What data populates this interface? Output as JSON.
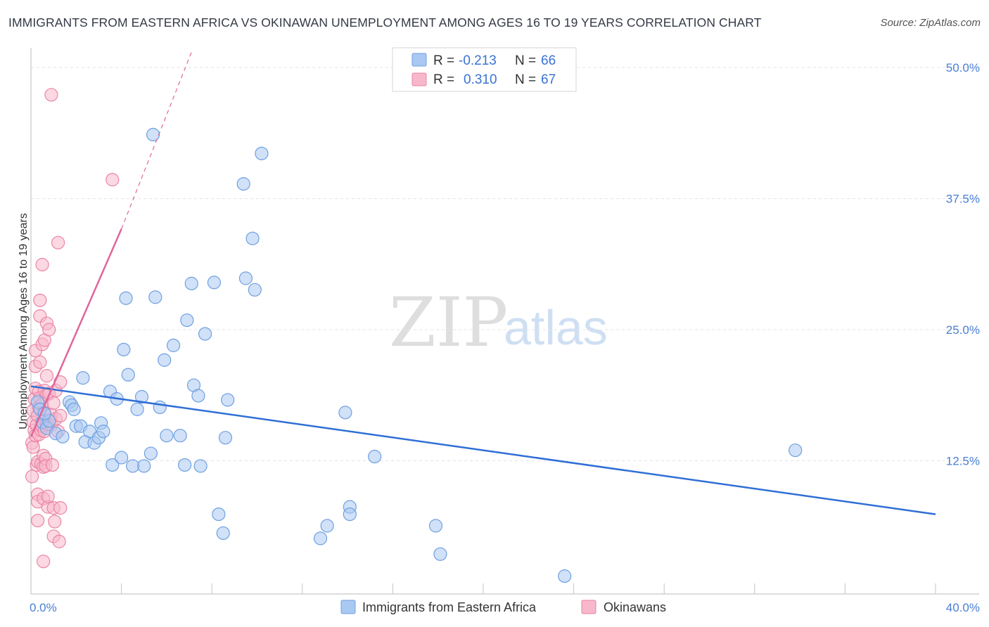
{
  "title": "IMMIGRANTS FROM EASTERN AFRICA VS OKINAWAN UNEMPLOYMENT AMONG AGES 16 TO 19 YEARS CORRELATION CHART",
  "source": "Source: ZipAtlas.com",
  "watermark": {
    "zip": "ZIP",
    "atlas": "atlas"
  },
  "colors": {
    "blue": "#a9c8f2",
    "blue_stroke": "#6fa0e0",
    "blue_line": "#2f6fd6",
    "pink": "#f7b8cb",
    "pink_stroke": "#ea85a6",
    "pink_line": "#e0669a",
    "tick": "#4a7fd4",
    "grid": "#e3e3e3"
  },
  "legend": {
    "r_label": "R =",
    "n_label": "N =",
    "rows": [
      {
        "r": "-0.213",
        "n": "66",
        "color": "blue"
      },
      {
        "r": "0.310",
        "n": "67",
        "color": "pink"
      }
    ]
  },
  "bottom_legend": [
    {
      "label": "Immigrants from Eastern Africa",
      "color": "blue"
    },
    {
      "label": "Okinawans",
      "color": "pink"
    }
  ],
  "chart_data": {
    "type": "scatter",
    "title": "IMMIGRANTS FROM EASTERN AFRICA VS OKINAWAN UNEMPLOYMENT AMONG AGES 16 TO 19 YEARS CORRELATION CHART",
    "xlabel": "",
    "ylabel": "Unemployment Among Ages 16 to 19 years",
    "xlim": [
      0,
      40
    ],
    "ylim": [
      0,
      50
    ],
    "x_tick_labels": [
      "0.0%",
      "40.0%"
    ],
    "y_ticks": [
      12.5,
      25.0,
      37.5,
      50.0
    ],
    "y_tick_labels": [
      "12.5%",
      "25.0%",
      "37.5%",
      "50.0%"
    ],
    "series": [
      {
        "name": "Immigrants from Eastern Africa",
        "color": "blue",
        "trend": {
          "x0": 0,
          "y0": 19.6,
          "x1": 40,
          "y1": 7.4,
          "dashed": false
        },
        "points": [
          [
            0.3,
            18.1
          ],
          [
            0.4,
            17.4
          ],
          [
            0.5,
            16.2
          ],
          [
            0.7,
            15.6
          ],
          [
            0.8,
            16.3
          ],
          [
            1.1,
            15.1
          ],
          [
            1.4,
            14.8
          ],
          [
            1.7,
            18.1
          ],
          [
            1.8,
            17.8
          ],
          [
            1.9,
            17.4
          ],
          [
            2.0,
            15.8
          ],
          [
            2.2,
            15.8
          ],
          [
            2.3,
            20.4
          ],
          [
            2.4,
            14.3
          ],
          [
            2.6,
            15.3
          ],
          [
            2.8,
            14.2
          ],
          [
            3.0,
            14.7
          ],
          [
            3.1,
            16.1
          ],
          [
            3.2,
            15.3
          ],
          [
            3.5,
            19.1
          ],
          [
            3.6,
            12.1
          ],
          [
            3.8,
            18.4
          ],
          [
            4.0,
            12.8
          ],
          [
            4.1,
            23.1
          ],
          [
            4.2,
            28.0
          ],
          [
            4.3,
            20.7
          ],
          [
            4.5,
            12.0
          ],
          [
            4.7,
            17.4
          ],
          [
            4.9,
            18.6
          ],
          [
            5.0,
            12.0
          ],
          [
            5.3,
            13.2
          ],
          [
            5.4,
            43.6
          ],
          [
            5.5,
            28.1
          ],
          [
            5.7,
            17.6
          ],
          [
            5.9,
            22.1
          ],
          [
            6.0,
            14.9
          ],
          [
            6.3,
            23.5
          ],
          [
            6.6,
            14.9
          ],
          [
            6.8,
            12.1
          ],
          [
            6.9,
            25.9
          ],
          [
            7.1,
            29.4
          ],
          [
            7.2,
            19.7
          ],
          [
            7.4,
            18.7
          ],
          [
            7.5,
            12.0
          ],
          [
            7.7,
            24.6
          ],
          [
            8.1,
            29.5
          ],
          [
            8.3,
            7.4
          ],
          [
            8.5,
            5.6
          ],
          [
            8.6,
            14.7
          ],
          [
            8.7,
            18.3
          ],
          [
            9.4,
            38.9
          ],
          [
            9.5,
            29.9
          ],
          [
            9.8,
            33.7
          ],
          [
            9.9,
            28.8
          ],
          [
            10.2,
            41.8
          ],
          [
            12.8,
            5.1
          ],
          [
            13.1,
            6.3
          ],
          [
            13.9,
            17.1
          ],
          [
            14.1,
            8.1
          ],
          [
            14.1,
            7.4
          ],
          [
            15.2,
            12.9
          ],
          [
            17.9,
            6.3
          ],
          [
            18.1,
            3.6
          ],
          [
            23.6,
            1.5
          ],
          [
            33.8,
            13.5
          ],
          [
            0.6,
            17.0
          ]
        ]
      },
      {
        "name": "Okinawans",
        "color": "pink",
        "trend": {
          "x0": 0,
          "y0": 14.8,
          "x1": 4.0,
          "y1": 34.6,
          "dashed": false,
          "extension": {
            "x0": 4.0,
            "y0": 34.6,
            "x1": 7.1,
            "y1": 50.0,
            "dashed": true
          }
        },
        "points": [
          [
            0.05,
            14.2
          ],
          [
            0.05,
            11.0
          ],
          [
            0.1,
            13.8
          ],
          [
            0.1,
            16.2
          ],
          [
            0.1,
            17.3
          ],
          [
            0.15,
            15.4
          ],
          [
            0.15,
            18.4
          ],
          [
            0.2,
            19.4
          ],
          [
            0.2,
            21.5
          ],
          [
            0.2,
            23.0
          ],
          [
            0.2,
            14.9
          ],
          [
            0.25,
            12.1
          ],
          [
            0.25,
            15.9
          ],
          [
            0.3,
            9.3
          ],
          [
            0.3,
            6.8
          ],
          [
            0.3,
            8.6
          ],
          [
            0.3,
            12.4
          ],
          [
            0.3,
            16.8
          ],
          [
            0.35,
            17.6
          ],
          [
            0.35,
            19.1
          ],
          [
            0.35,
            15.0
          ],
          [
            0.4,
            27.8
          ],
          [
            0.4,
            26.3
          ],
          [
            0.4,
            21.9
          ],
          [
            0.4,
            18.5
          ],
          [
            0.45,
            12.2
          ],
          [
            0.45,
            15.4
          ],
          [
            0.5,
            31.2
          ],
          [
            0.5,
            23.6
          ],
          [
            0.5,
            17.9
          ],
          [
            0.5,
            15.8
          ],
          [
            0.55,
            13.0
          ],
          [
            0.55,
            11.9
          ],
          [
            0.55,
            8.9
          ],
          [
            0.55,
            2.9
          ],
          [
            0.6,
            24.0
          ],
          [
            0.6,
            19.2
          ],
          [
            0.6,
            17.1
          ],
          [
            0.6,
            15.3
          ],
          [
            0.65,
            12.7
          ],
          [
            0.65,
            12.0
          ],
          [
            0.7,
            25.6
          ],
          [
            0.7,
            20.6
          ],
          [
            0.7,
            18.8
          ],
          [
            0.7,
            16.0
          ],
          [
            0.75,
            8.1
          ],
          [
            0.75,
            9.1
          ],
          [
            0.8,
            25.0
          ],
          [
            0.8,
            18.9
          ],
          [
            0.85,
            16.4
          ],
          [
            0.9,
            16.9
          ],
          [
            0.9,
            15.9
          ],
          [
            0.95,
            12.1
          ],
          [
            1.0,
            5.3
          ],
          [
            1.0,
            18.0
          ],
          [
            0.9,
            47.4
          ],
          [
            1.0,
            8.0
          ],
          [
            1.05,
            6.7
          ],
          [
            1.1,
            19.2
          ],
          [
            1.1,
            16.5
          ],
          [
            1.2,
            15.3
          ],
          [
            1.3,
            16.8
          ],
          [
            1.25,
            4.8
          ],
          [
            1.3,
            20.0
          ],
          [
            1.2,
            33.3
          ],
          [
            1.3,
            8.0
          ],
          [
            3.6,
            39.3
          ]
        ]
      }
    ]
  }
}
